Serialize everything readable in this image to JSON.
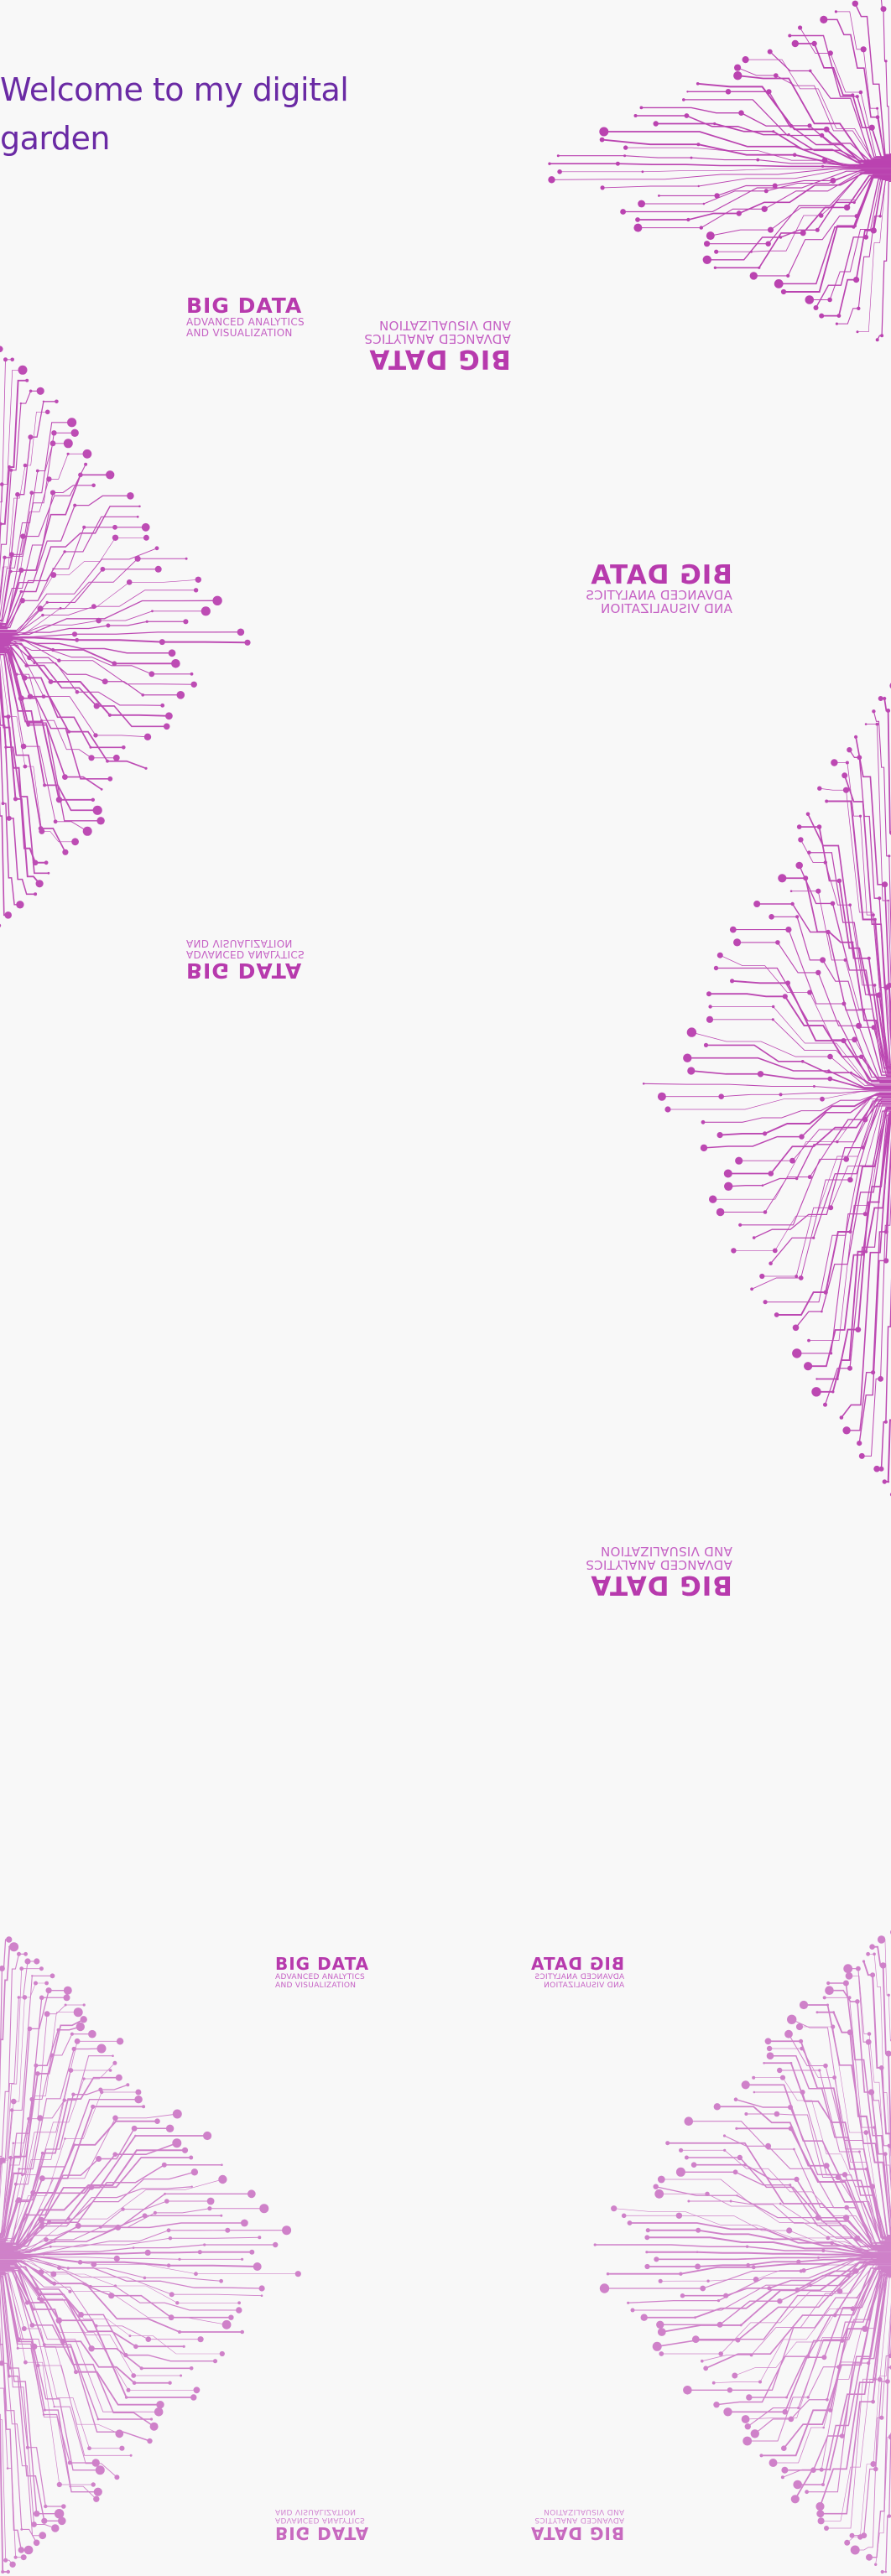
{
  "page": {
    "title": "Welcome to my digital garden"
  },
  "brand": {
    "name": "BIG DATA",
    "line1": "ADVANCED ANALYTICS",
    "line2": "AND VISUALIZATION",
    "accent": "#b73aad",
    "title_color": "#6a2aa4",
    "background": "#f8f8f8"
  },
  "decorations": [
    "circuit-tree-icon",
    "big-data-logo"
  ]
}
